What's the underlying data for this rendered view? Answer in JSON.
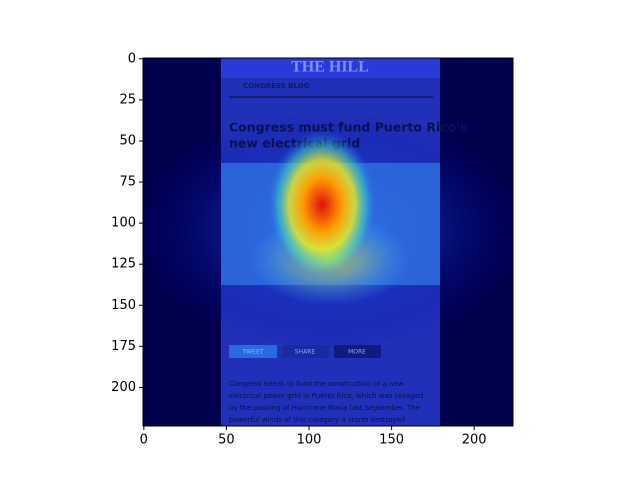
{
  "chart_data": {
    "type": "image",
    "xlim": [
      -0.5,
      223.5
    ],
    "ylim": [
      223.5,
      -0.5
    ],
    "xticks": [
      0,
      50,
      100,
      150,
      200
    ],
    "yticks": [
      0,
      25,
      50,
      75,
      100,
      125,
      150,
      175,
      200
    ]
  },
  "screenshot": {
    "masthead": "THE HILL",
    "section": "CONGRESS BLOG",
    "headline": [
      "Congress must fund Puerto Rico's",
      "new electrical grid"
    ],
    "buttons": [
      "TWEET",
      "SHARE",
      "MORE"
    ],
    "body": [
      "Congress needs to fund the construction of a new",
      "electrical power grid in Puerto Rico, which was ravaged",
      "by the passing of Hurricane Maria last September. The",
      "powerful winds of this category 4 storm destroyed"
    ]
  }
}
